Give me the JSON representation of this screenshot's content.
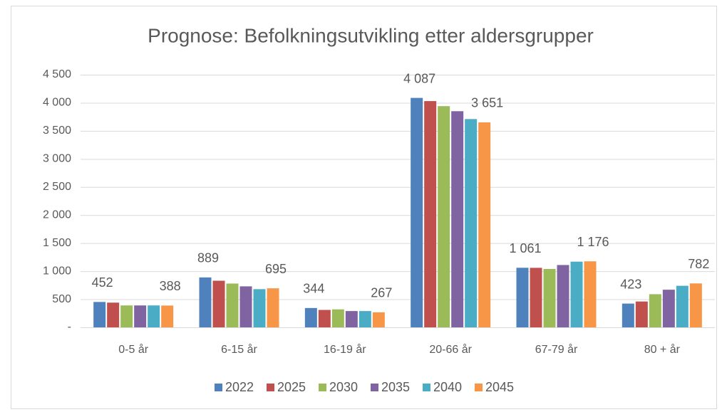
{
  "chart_data": {
    "type": "bar",
    "title": "Prognose: Befolkningsutvikling etter aldersgrupper",
    "categories": [
      "0-5 år",
      "6-15 år",
      "16-19 år",
      "20-66 år",
      "67-79 år",
      "80 + år"
    ],
    "series": [
      {
        "name": "2022",
        "color": "#4f81bd",
        "values": [
          452,
          889,
          344,
          4087,
          1061,
          423
        ],
        "value_labels": [
          "452",
          "889",
          "344",
          "4 087",
          "1 061",
          "423"
        ]
      },
      {
        "name": "2025",
        "color": "#c0504d",
        "values": [
          440,
          830,
          310,
          4030,
          1060,
          460
        ]
      },
      {
        "name": "2030",
        "color": "#9bbb59",
        "values": [
          390,
          780,
          320,
          3940,
          1040,
          590
        ]
      },
      {
        "name": "2035",
        "color": "#8064a2",
        "values": [
          390,
          730,
          290,
          3850,
          1110,
          670
        ]
      },
      {
        "name": "2040",
        "color": "#4bacc6",
        "values": [
          390,
          680,
          290,
          3710,
          1170,
          740
        ]
      },
      {
        "name": "2045",
        "color": "#f79646",
        "values": [
          388,
          695,
          267,
          3651,
          1176,
          782
        ],
        "value_labels": [
          "388",
          "695",
          "267",
          "3 651",
          "1 176",
          "782"
        ]
      }
    ],
    "ylim": [
      0,
      4500
    ],
    "yticks": [
      {
        "value": 0,
        "label": "-"
      },
      500,
      {
        "value": 1000,
        "label": "1 000"
      },
      {
        "value": 1500,
        "label": "1 500"
      },
      {
        "value": 2000,
        "label": "2 000"
      },
      {
        "value": 2500,
        "label": "2 500"
      },
      {
        "value": 3000,
        "label": "3 000"
      },
      {
        "value": 3500,
        "label": "3 500"
      },
      {
        "value": 4000,
        "label": "4 000"
      },
      {
        "value": 4500,
        "label": "4 500"
      }
    ],
    "grid": true
  }
}
